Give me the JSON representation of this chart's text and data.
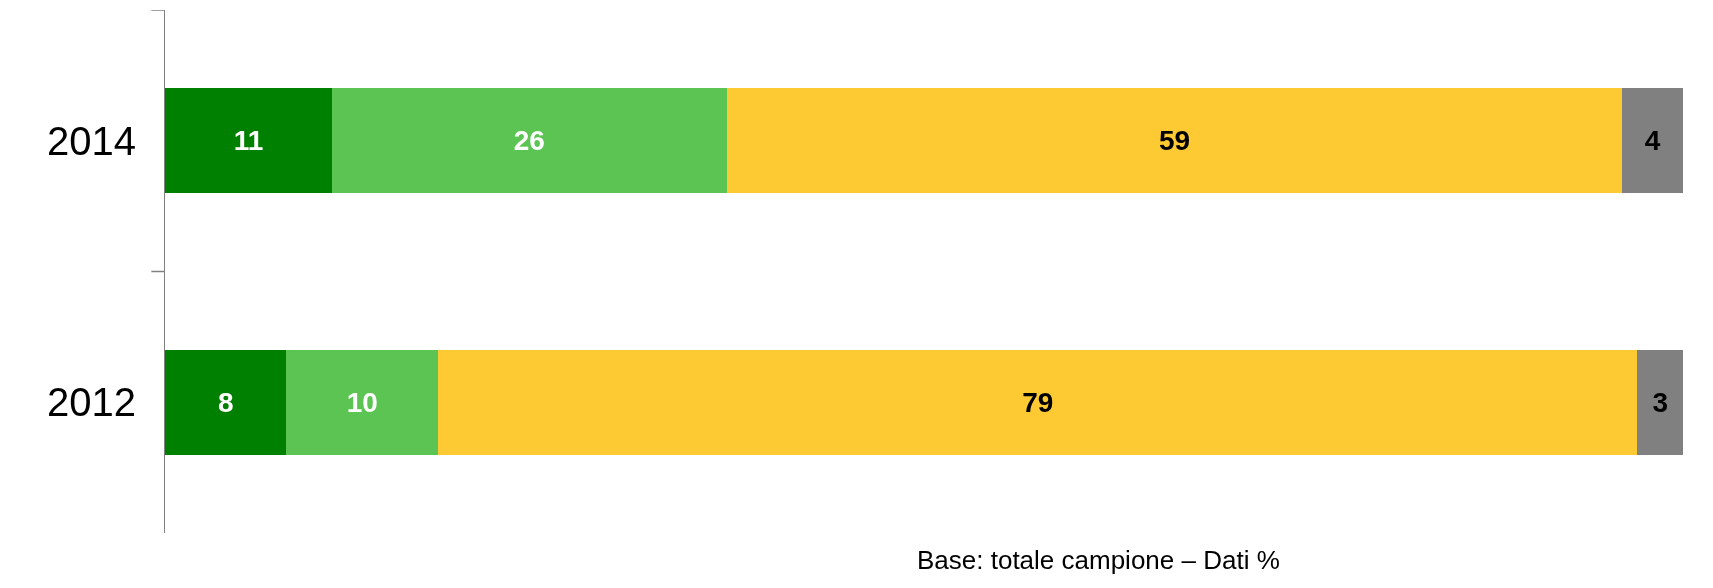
{
  "chart_data": {
    "type": "bar",
    "orientation": "horizontal",
    "stacked": true,
    "categories": [
      "2014",
      "2012"
    ],
    "series": [
      {
        "color": "#008000",
        "values": [
          11,
          8
        ]
      },
      {
        "color": "#5bc453",
        "values": [
          26,
          10
        ]
      },
      {
        "color": "#fdca33",
        "values": [
          59,
          79
        ]
      },
      {
        "color": "#808080",
        "values": [
          4,
          3
        ]
      }
    ],
    "xlim": [
      0,
      100
    ],
    "tick_labels": "y",
    "data_labels": true,
    "annotations": [
      "Base: totale campione – Dati %"
    ]
  }
}
